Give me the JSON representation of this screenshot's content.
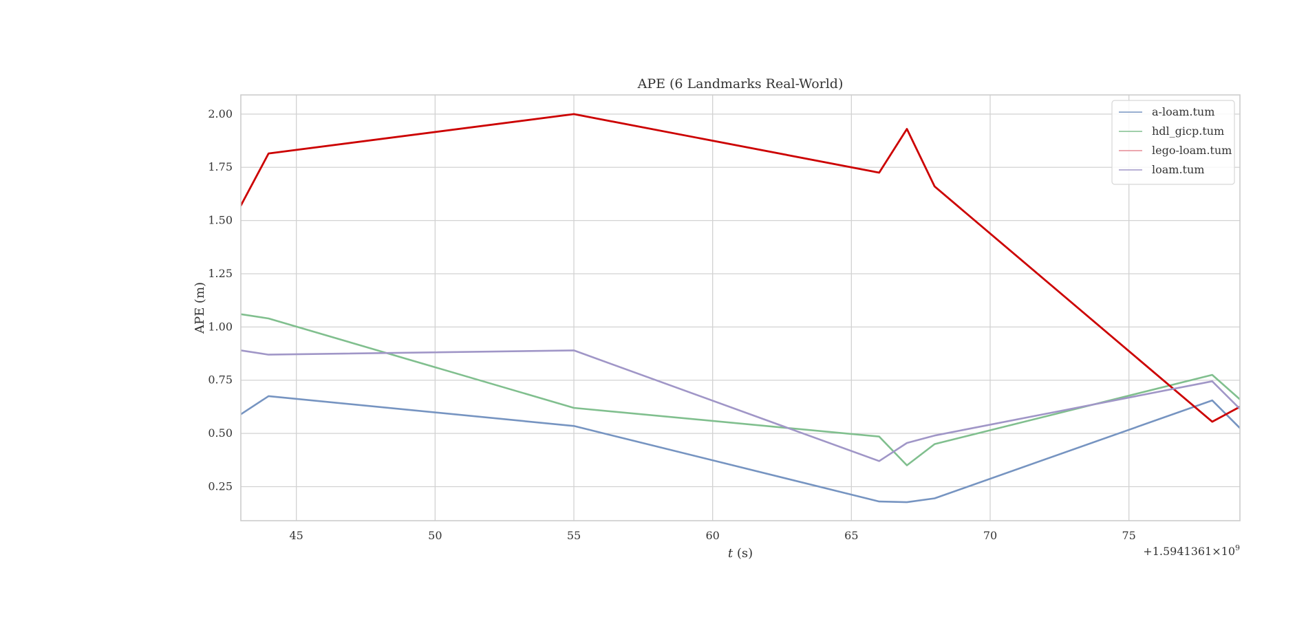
{
  "chart_data": {
    "type": "line",
    "title": "APE (6 Landmarks Real-World)",
    "xlabel_italic": "t",
    "xlabel_unit": " (s)",
    "ylabel": "APE (m)",
    "x_offset_label": "+1.5941361×10",
    "x_offset_exponent": "9",
    "xlim": [
      43,
      79
    ],
    "ylim": [
      0.09,
      2.09
    ],
    "x_ticks": [
      45,
      50,
      55,
      60,
      65,
      70,
      75
    ],
    "y_ticks": [
      0.25,
      0.5,
      0.75,
      1.0,
      1.25,
      1.5,
      1.75,
      2.0
    ],
    "y_tick_labels": [
      "0.25",
      "0.50",
      "0.75",
      "1.00",
      "1.25",
      "1.50",
      "1.75",
      "2.00"
    ],
    "grid": true,
    "legend_position": "top-right",
    "x": [
      43,
      44,
      55,
      66,
      67,
      68,
      78,
      79
    ],
    "series": [
      {
        "name": "a-loam.tum",
        "color": "#7694c1",
        "line_width": 2.6,
        "values": [
          0.59,
          0.675,
          0.535,
          0.18,
          0.177,
          0.195,
          0.655,
          0.525
        ]
      },
      {
        "name": "hdl_gicp.tum",
        "color": "#80bf8e",
        "line_width": 2.6,
        "values": [
          1.06,
          1.04,
          0.62,
          0.485,
          0.35,
          0.45,
          0.775,
          0.66
        ]
      },
      {
        "name": "lego-loam.tum",
        "color": "#cc0000",
        "line_width": 2.8,
        "legend_color": "#e58a94",
        "values": [
          1.57,
          1.815,
          2.0,
          1.725,
          1.93,
          1.66,
          0.555,
          0.625
        ]
      },
      {
        "name": "loam.tum",
        "color": "#a096c7",
        "line_width": 2.6,
        "values": [
          0.89,
          0.87,
          0.89,
          0.37,
          0.455,
          0.49,
          0.745,
          0.615
        ]
      }
    ]
  }
}
